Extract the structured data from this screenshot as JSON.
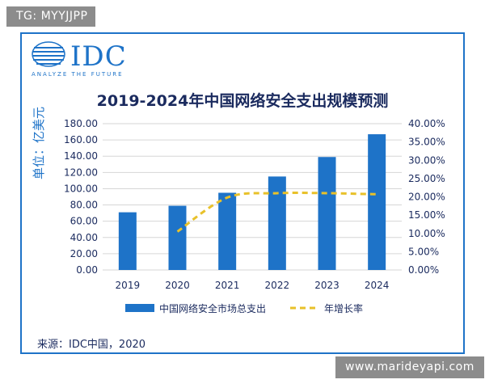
{
  "watermark_top": "TG: MYYJJPP",
  "watermark_bottom": "www.marideyapi.com",
  "logo": {
    "brand": "IDC",
    "tagline": "ANALYZE THE FUTURE"
  },
  "source": "来源：IDC中国，2020",
  "colors": {
    "bar": "#1e73c8",
    "line": "#e8c12a",
    "frame": "#1e73c8",
    "text": "#1a2a5e"
  },
  "chart_data": {
    "type": "bar",
    "title": "2019-2024年中国网络安全支出规模预测",
    "ylabel": "单位：亿美元",
    "categories": [
      "2019",
      "2020",
      "2021",
      "2022",
      "2023",
      "2024"
    ],
    "series": [
      {
        "name": "中国网络安全市场总支出",
        "type": "bar",
        "axis": "left",
        "values": [
          71.0,
          79.0,
          95.0,
          115.0,
          139.0,
          167.0
        ]
      },
      {
        "name": "年增长率",
        "type": "line",
        "axis": "right",
        "style": "dashed",
        "values": [
          null,
          10.5,
          19.8,
          21.0,
          21.0,
          20.7
        ]
      }
    ],
    "ylim_left": [
      0,
      180
    ],
    "ylim_right": [
      0,
      40
    ],
    "yticks_left": [
      "0.00",
      "20.00",
      "40.00",
      "60.00",
      "80.00",
      "100.00",
      "120.00",
      "140.00",
      "160.00",
      "180.00"
    ],
    "yticks_right": [
      "0.00%",
      "5.00%",
      "10.00%",
      "15.00%",
      "20.00%",
      "25.00%",
      "30.00%",
      "35.00%",
      "40.00%"
    ],
    "grid": true,
    "legend": "bottom"
  }
}
